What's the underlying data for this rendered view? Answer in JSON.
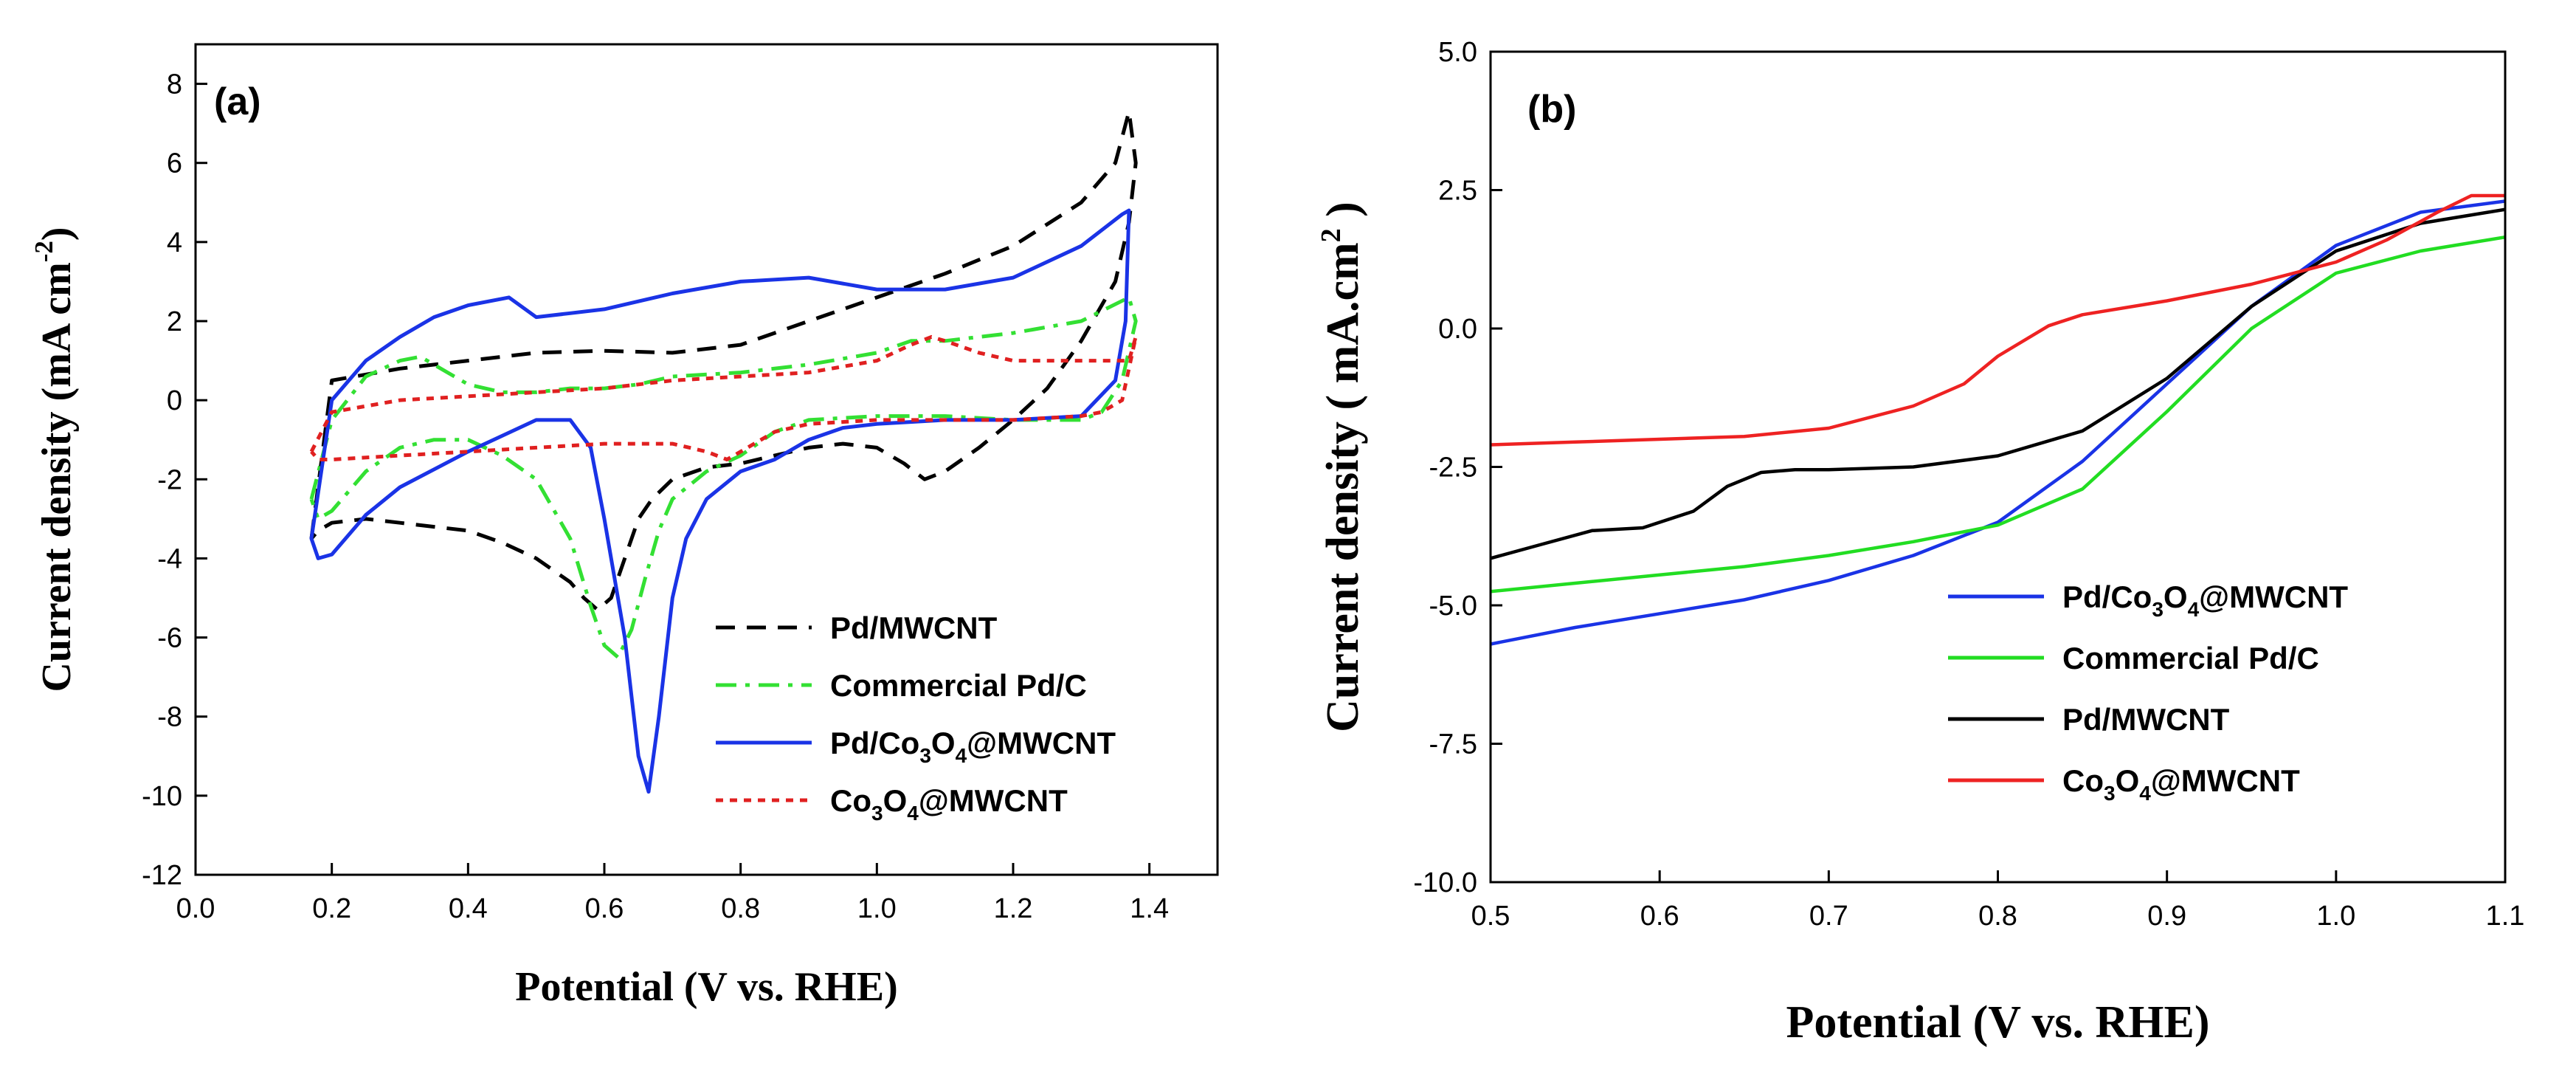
{
  "chart_data": [
    {
      "type": "line",
      "panel_label": "(a)",
      "xlabel": "Potential (V vs. RHE)",
      "ylabel": {
        "main": "Current density (mA cm",
        "sup": "-2",
        "close": ")"
      },
      "xlim": [
        0.0,
        1.5
      ],
      "ylim": [
        -12,
        9
      ],
      "xticks": [
        "0.0",
        "0.2",
        "0.4",
        "0.6",
        "0.8",
        "1.0",
        "1.2",
        "1.4"
      ],
      "yticks": [
        "8",
        "6",
        "4",
        "2",
        "0",
        "-2",
        "-4",
        "-6",
        "-8",
        "-10",
        "-12"
      ],
      "legend_position": "lower-right",
      "series": [
        {
          "name": "Pd/MWCNT",
          "legend": [
            {
              "t": "Pd/MWCNT"
            }
          ],
          "color": "#000000",
          "dash": "dashed",
          "x": [
            0.17,
            0.2,
            0.3,
            0.4,
            0.5,
            0.6,
            0.7,
            0.8,
            0.9,
            1.0,
            1.1,
            1.2,
            1.3,
            1.35,
            1.37,
            1.38,
            1.37,
            1.35,
            1.3,
            1.25,
            1.2,
            1.15,
            1.1,
            1.07,
            1.04,
            1.0,
            0.95,
            0.9,
            0.85,
            0.8,
            0.75,
            0.7,
            0.67,
            0.65,
            0.63,
            0.61,
            0.59,
            0.57,
            0.55,
            0.5,
            0.45,
            0.4,
            0.3,
            0.25,
            0.2,
            0.18,
            0.17
          ],
          "y": [
            -3.5,
            0.5,
            0.8,
            1.0,
            1.2,
            1.25,
            1.2,
            1.4,
            2.0,
            2.6,
            3.2,
            3.9,
            5.0,
            6.0,
            7.3,
            6.0,
            4.5,
            3.0,
            1.5,
            0.3,
            -0.5,
            -1.2,
            -1.8,
            -2.0,
            -1.6,
            -1.2,
            -1.1,
            -1.2,
            -1.4,
            -1.6,
            -1.7,
            -2.0,
            -2.5,
            -3.0,
            -4.0,
            -5.0,
            -5.3,
            -5.0,
            -4.6,
            -4.0,
            -3.6,
            -3.3,
            -3.1,
            -3.0,
            -3.1,
            -3.3,
            -3.5
          ]
        },
        {
          "name": "Commercial Pd/C",
          "legend": [
            {
              "t": "Commercial Pd/C"
            }
          ],
          "color": "#33e033",
          "dash": "dashdot",
          "x": [
            0.17,
            0.2,
            0.25,
            0.3,
            0.33,
            0.36,
            0.4,
            0.45,
            0.5,
            0.55,
            0.6,
            0.65,
            0.7,
            0.8,
            0.9,
            1.0,
            1.05,
            1.1,
            1.15,
            1.2,
            1.3,
            1.37,
            1.38,
            1.36,
            1.33,
            1.3,
            1.2,
            1.1,
            1.0,
            0.9,
            0.85,
            0.8,
            0.75,
            0.7,
            0.68,
            0.66,
            0.64,
            0.62,
            0.6,
            0.58,
            0.55,
            0.5,
            0.45,
            0.4,
            0.35,
            0.3,
            0.25,
            0.2,
            0.18,
            0.17
          ],
          "y": [
            -2.5,
            -0.5,
            0.6,
            1.0,
            1.1,
            0.8,
            0.4,
            0.2,
            0.2,
            0.3,
            0.3,
            0.4,
            0.6,
            0.7,
            0.9,
            1.2,
            1.5,
            1.5,
            1.6,
            1.7,
            2.0,
            2.6,
            2.0,
            0.5,
            -0.3,
            -0.5,
            -0.5,
            -0.4,
            -0.4,
            -0.5,
            -0.8,
            -1.4,
            -1.8,
            -2.5,
            -3.3,
            -4.5,
            -5.8,
            -6.5,
            -6.2,
            -5.2,
            -3.5,
            -2.0,
            -1.4,
            -1.0,
            -1.0,
            -1.2,
            -1.8,
            -2.8,
            -3.0,
            -2.5
          ]
        },
        {
          "name": "Pd/Co3O4@MWCNT",
          "legend": [
            {
              "t": "Pd/Co"
            },
            {
              "t": "3",
              "sub": true
            },
            {
              "t": "O"
            },
            {
              "t": "4",
              "sub": true
            },
            {
              "t": "@MWCNT"
            }
          ],
          "color": "#1a33e6",
          "dash": "solid",
          "x": [
            0.17,
            0.2,
            0.25,
            0.3,
            0.35,
            0.4,
            0.46,
            0.5,
            0.55,
            0.6,
            0.65,
            0.7,
            0.8,
            0.9,
            1.0,
            1.05,
            1.1,
            1.2,
            1.3,
            1.36,
            1.37,
            1.365,
            1.35,
            1.3,
            1.2,
            1.1,
            1.0,
            0.95,
            0.9,
            0.85,
            0.8,
            0.75,
            0.72,
            0.7,
            0.68,
            0.665,
            0.65,
            0.63,
            0.6,
            0.58,
            0.55,
            0.5,
            0.45,
            0.4,
            0.3,
            0.25,
            0.2,
            0.18,
            0.17
          ],
          "y": [
            -3.5,
            0.0,
            1.0,
            1.6,
            2.1,
            2.4,
            2.6,
            2.1,
            2.2,
            2.3,
            2.5,
            2.7,
            3.0,
            3.1,
            2.8,
            2.8,
            2.8,
            3.1,
            3.9,
            4.7,
            4.8,
            2.0,
            0.5,
            -0.4,
            -0.5,
            -0.5,
            -0.6,
            -0.7,
            -1.0,
            -1.5,
            -1.8,
            -2.5,
            -3.5,
            -5.0,
            -8.0,
            -9.9,
            -9.0,
            -6.0,
            -3.0,
            -1.2,
            -0.5,
            -0.5,
            -0.9,
            -1.3,
            -2.2,
            -2.9,
            -3.9,
            -4.0,
            -3.5
          ]
        },
        {
          "name": "Co3O4@MWCNT",
          "legend": [
            {
              "t": "Co"
            },
            {
              "t": "3",
              "sub": true
            },
            {
              "t": "O"
            },
            {
              "t": "4",
              "sub": true
            },
            {
              "t": "@MWCNT"
            }
          ],
          "color": "#e02020",
          "dash": "dotted",
          "x": [
            0.17,
            0.2,
            0.3,
            0.4,
            0.5,
            0.6,
            0.7,
            0.8,
            0.9,
            1.0,
            1.05,
            1.08,
            1.1,
            1.15,
            1.2,
            1.3,
            1.37,
            1.38,
            1.36,
            1.33,
            1.3,
            1.2,
            1.1,
            1.0,
            0.9,
            0.85,
            0.8,
            0.78,
            0.75,
            0.7,
            0.6,
            0.5,
            0.4,
            0.3,
            0.2,
            0.18,
            0.17
          ],
          "y": [
            -1.3,
            -0.3,
            0.0,
            0.1,
            0.2,
            0.3,
            0.5,
            0.6,
            0.7,
            1.0,
            1.4,
            1.6,
            1.5,
            1.2,
            1.0,
            1.0,
            1.0,
            1.6,
            0.0,
            -0.3,
            -0.4,
            -0.5,
            -0.5,
            -0.5,
            -0.6,
            -0.8,
            -1.3,
            -1.5,
            -1.3,
            -1.1,
            -1.1,
            -1.2,
            -1.3,
            -1.4,
            -1.5,
            -1.5,
            -1.3
          ]
        }
      ]
    },
    {
      "type": "line",
      "panel_label": "(b)",
      "xlabel": "Potential (V vs. RHE)",
      "ylabel": {
        "main": "Current density ( mA.cm",
        "sup": "2",
        "close": " )"
      },
      "xlim": [
        0.5,
        1.1
      ],
      "ylim": [
        -10.0,
        5.0
      ],
      "xticks": [
        "0.5",
        "0.6",
        "0.7",
        "0.8",
        "0.9",
        "1.0",
        "1.1"
      ],
      "yticks": [
        "5.0",
        "2.5",
        "0.0",
        "-2.5",
        "-5.0",
        "-7.5",
        "-10.0"
      ],
      "legend_position": "lower-right",
      "series": [
        {
          "name": "Pd/Co3O4@MWCNT",
          "legend": [
            {
              "t": "Pd/Co"
            },
            {
              "t": "3",
              "sub": true
            },
            {
              "t": "O"
            },
            {
              "t": "4",
              "sub": true
            },
            {
              "t": "@MWCNT"
            }
          ],
          "color": "#1a33e6",
          "dash": "solid",
          "x": [
            0.5,
            0.55,
            0.6,
            0.65,
            0.7,
            0.75,
            0.8,
            0.85,
            0.9,
            0.95,
            1.0,
            1.05,
            1.1
          ],
          "y": [
            -5.7,
            -5.4,
            -5.15,
            -4.9,
            -4.55,
            -4.1,
            -3.5,
            -2.4,
            -1.0,
            0.4,
            1.5,
            2.1,
            2.3
          ]
        },
        {
          "name": "Commercial Pd/C",
          "legend": [
            {
              "t": "Commercial Pd/C"
            }
          ],
          "color": "#22dd22",
          "dash": "solid",
          "x": [
            0.5,
            0.55,
            0.6,
            0.65,
            0.7,
            0.75,
            0.8,
            0.85,
            0.9,
            0.95,
            1.0,
            1.05,
            1.1
          ],
          "y": [
            -4.75,
            -4.6,
            -4.45,
            -4.3,
            -4.1,
            -3.85,
            -3.55,
            -2.9,
            -1.5,
            0.0,
            1.0,
            1.4,
            1.65
          ]
        },
        {
          "name": "Pd/MWCNT",
          "legend": [
            {
              "t": "Pd/MWCNT"
            }
          ],
          "color": "#000000",
          "dash": "solid",
          "x": [
            0.5,
            0.53,
            0.56,
            0.59,
            0.62,
            0.64,
            0.66,
            0.68,
            0.7,
            0.75,
            0.8,
            0.85,
            0.9,
            0.95,
            1.0,
            1.05,
            1.1
          ],
          "y": [
            -4.15,
            -3.9,
            -3.65,
            -3.6,
            -3.3,
            -2.85,
            -2.6,
            -2.55,
            -2.55,
            -2.5,
            -2.3,
            -1.85,
            -0.9,
            0.4,
            1.4,
            1.9,
            2.15
          ]
        },
        {
          "name": "Co3O4@MWCNT",
          "legend": [
            {
              "t": "Co"
            },
            {
              "t": "3",
              "sub": true
            },
            {
              "t": "O"
            },
            {
              "t": "4",
              "sub": true
            },
            {
              "t": "@MWCNT"
            }
          ],
          "color": "#ee2222",
          "dash": "solid",
          "x": [
            0.5,
            0.55,
            0.6,
            0.65,
            0.7,
            0.75,
            0.78,
            0.8,
            0.83,
            0.85,
            0.9,
            0.95,
            1.0,
            1.03,
            1.06,
            1.08,
            1.1
          ],
          "y": [
            -2.1,
            -2.05,
            -2.0,
            -1.95,
            -1.8,
            -1.4,
            -1.0,
            -0.5,
            0.05,
            0.25,
            0.5,
            0.8,
            1.2,
            1.6,
            2.1,
            2.4,
            2.4
          ]
        }
      ]
    }
  ]
}
